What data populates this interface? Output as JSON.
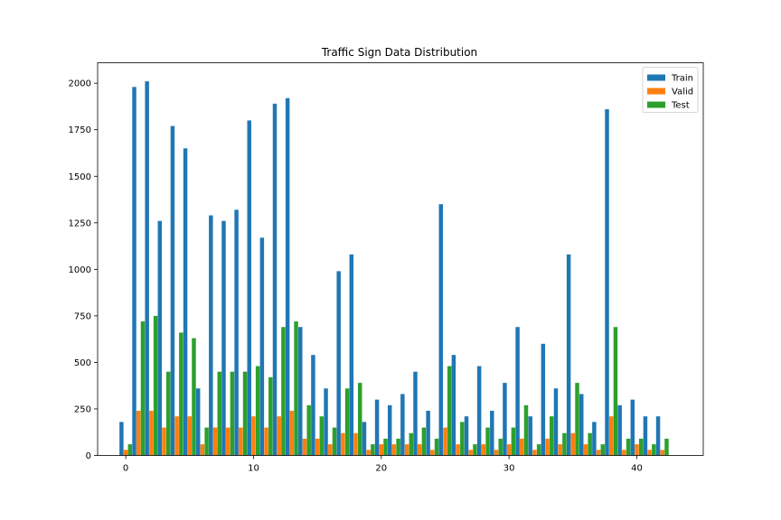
{
  "chart_data": {
    "type": "bar",
    "title": "Traffic Sign Data Distribution",
    "xlabel": "",
    "ylabel": "",
    "xlim": [
      -2.2,
      45.2
    ],
    "ylim": [
      0,
      2110
    ],
    "x_ticks": [
      0,
      10,
      20,
      30,
      40
    ],
    "y_ticks": [
      0,
      250,
      500,
      750,
      1000,
      1250,
      1500,
      1750,
      2000
    ],
    "legend_placement": "top-right",
    "grid": false,
    "categories": [
      0,
      1,
      2,
      3,
      4,
      5,
      6,
      7,
      8,
      9,
      10,
      11,
      12,
      13,
      14,
      15,
      16,
      17,
      18,
      19,
      20,
      21,
      22,
      23,
      24,
      25,
      26,
      27,
      28,
      29,
      30,
      31,
      32,
      33,
      34,
      35,
      36,
      37,
      38,
      39,
      40,
      41,
      42
    ],
    "series": [
      {
        "name": "Train",
        "color": "#1f77b4",
        "values": [
          180,
          1980,
          2010,
          1260,
          1770,
          1650,
          360,
          1290,
          1260,
          1320,
          1800,
          1170,
          1890,
          1920,
          690,
          540,
          360,
          990,
          1080,
          180,
          300,
          270,
          330,
          450,
          240,
          1350,
          540,
          210,
          480,
          240,
          390,
          690,
          210,
          600,
          360,
          1080,
          330,
          180,
          1860,
          270,
          300,
          210,
          210
        ]
      },
      {
        "name": "Valid",
        "color": "#ff7f0e",
        "values": [
          30,
          240,
          240,
          150,
          210,
          210,
          60,
          150,
          150,
          150,
          210,
          150,
          210,
          240,
          90,
          90,
          60,
          120,
          120,
          30,
          60,
          60,
          60,
          60,
          30,
          150,
          60,
          30,
          60,
          30,
          60,
          90,
          30,
          90,
          60,
          120,
          60,
          30,
          210,
          30,
          60,
          30,
          30
        ]
      },
      {
        "name": "Test",
        "color": "#2ca02c",
        "values": [
          60,
          720,
          750,
          450,
          660,
          630,
          150,
          450,
          450,
          450,
          480,
          420,
          690,
          720,
          270,
          210,
          150,
          360,
          390,
          60,
          90,
          90,
          120,
          150,
          90,
          480,
          180,
          60,
          150,
          90,
          150,
          270,
          60,
          210,
          120,
          390,
          120,
          60,
          690,
          90,
          90,
          60,
          90
        ]
      }
    ]
  }
}
